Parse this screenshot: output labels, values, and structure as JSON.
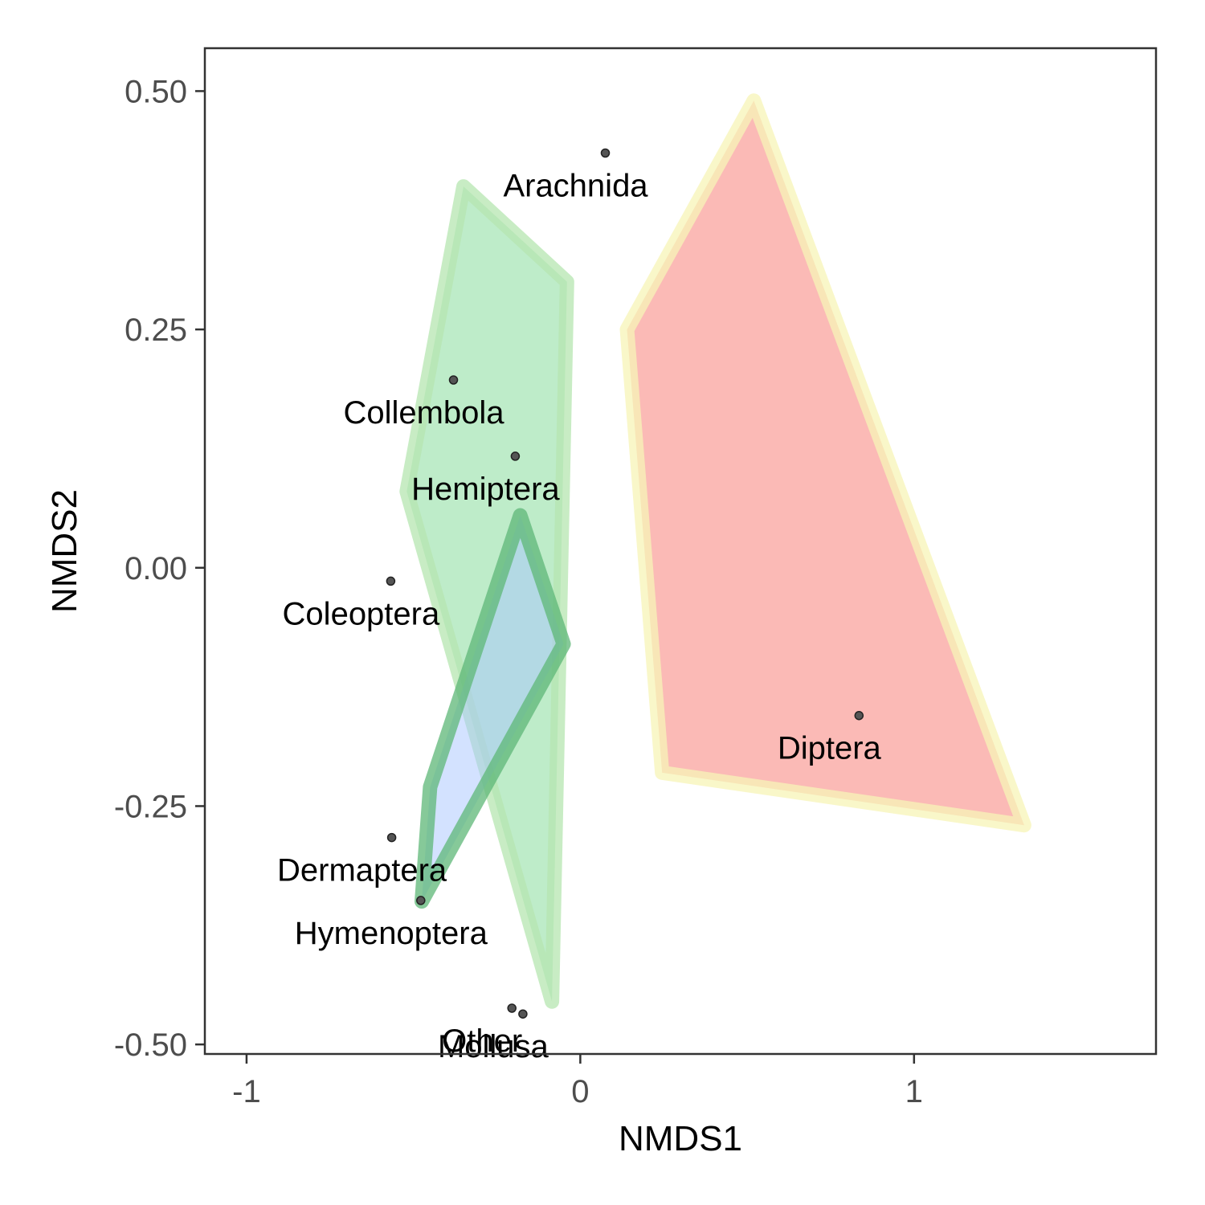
{
  "chart_data": {
    "type": "scatter",
    "title": "",
    "xlabel": "NMDS1",
    "ylabel": "NMDS2",
    "xlim": [
      -1.125,
      1.725
    ],
    "ylim": [
      -0.51,
      0.545
    ],
    "x_ticks": [
      -1,
      0,
      1
    ],
    "x_tick_labels": [
      "-1",
      "0",
      "1"
    ],
    "y_ticks": [
      0.5,
      0.25,
      0.0,
      -0.25,
      -0.5
    ],
    "y_tick_labels": [
      "0.50",
      "0.25",
      "0.00",
      "-0.25",
      "-0.50"
    ],
    "grid": false,
    "legend": "none",
    "points": [
      {
        "label": "Arachnida",
        "x": 0.075,
        "y": 0.435
      },
      {
        "label": "Collembola",
        "x": -0.38,
        "y": 0.197
      },
      {
        "label": "Hemiptera",
        "x": -0.195,
        "y": 0.117
      },
      {
        "label": "Coleoptera",
        "x": -0.568,
        "y": -0.014
      },
      {
        "label": "Diptera",
        "x": 0.835,
        "y": -0.155
      },
      {
        "label": "Dermaptera",
        "x": -0.565,
        "y": -0.283
      },
      {
        "label": "Hymenoptera",
        "x": -0.478,
        "y": -0.349
      },
      {
        "label": "Other",
        "x": -0.205,
        "y": -0.462
      },
      {
        "label": "Mollusa",
        "x": -0.172,
        "y": -0.468
      }
    ],
    "hulls": [
      {
        "fill": "#7dd994",
        "stroke": "#b5e6b0",
        "points": [
          [
            -0.35,
            0.4
          ],
          [
            -0.04,
            0.3
          ],
          [
            -0.085,
            -0.455
          ],
          [
            -0.52,
            0.08
          ]
        ]
      },
      {
        "fill": "#f8756d",
        "stroke": "#f7f4b7",
        "points": [
          [
            0.52,
            0.49
          ],
          [
            1.33,
            -0.27
          ],
          [
            0.245,
            -0.215
          ],
          [
            0.14,
            0.25
          ]
        ]
      },
      {
        "fill": "#a7c6ff",
        "stroke": "#5db777",
        "points": [
          [
            -0.18,
            0.055
          ],
          [
            -0.05,
            -0.08
          ],
          [
            -0.475,
            -0.35
          ],
          [
            -0.45,
            -0.23
          ]
        ]
      }
    ]
  }
}
